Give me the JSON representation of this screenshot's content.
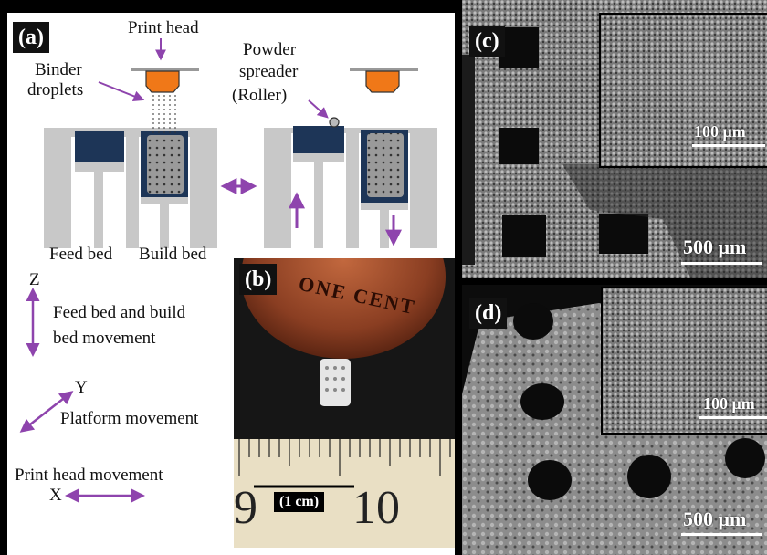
{
  "panels": {
    "a": {
      "label": "(a)"
    },
    "b": {
      "label": "(b)"
    },
    "c": {
      "label": "(c)"
    },
    "d": {
      "label": "(d)"
    }
  },
  "diagram": {
    "print_head": "Print head",
    "binder": [
      "Binder",
      "droplets"
    ],
    "spreader": [
      "Powder",
      "spreader",
      "(Roller)"
    ],
    "feed_bed": "Feed bed",
    "build_bed": "Build bed",
    "z_label": "Z",
    "z_movement": [
      "Feed bed and build",
      "bed movement"
    ],
    "y_label": "Y",
    "platform_movement": "Platform movement",
    "print_head_movement": "Print head movement",
    "x_label": "X"
  },
  "photo_b": {
    "coin_text": "ONE CENT",
    "ruler_digits": [
      "9",
      "10"
    ],
    "scale_label": "(1 cm)"
  },
  "sem_c": {
    "inset_scale": "100 μm",
    "main_scale": "500 μm"
  },
  "sem_d": {
    "inset_scale": "100 μm",
    "main_scale": "500 μm"
  },
  "colors": {
    "arrow": "#8e44ad",
    "print_head": "#f07818",
    "powder": "#1d3557",
    "wall": "#c8c8c8"
  }
}
